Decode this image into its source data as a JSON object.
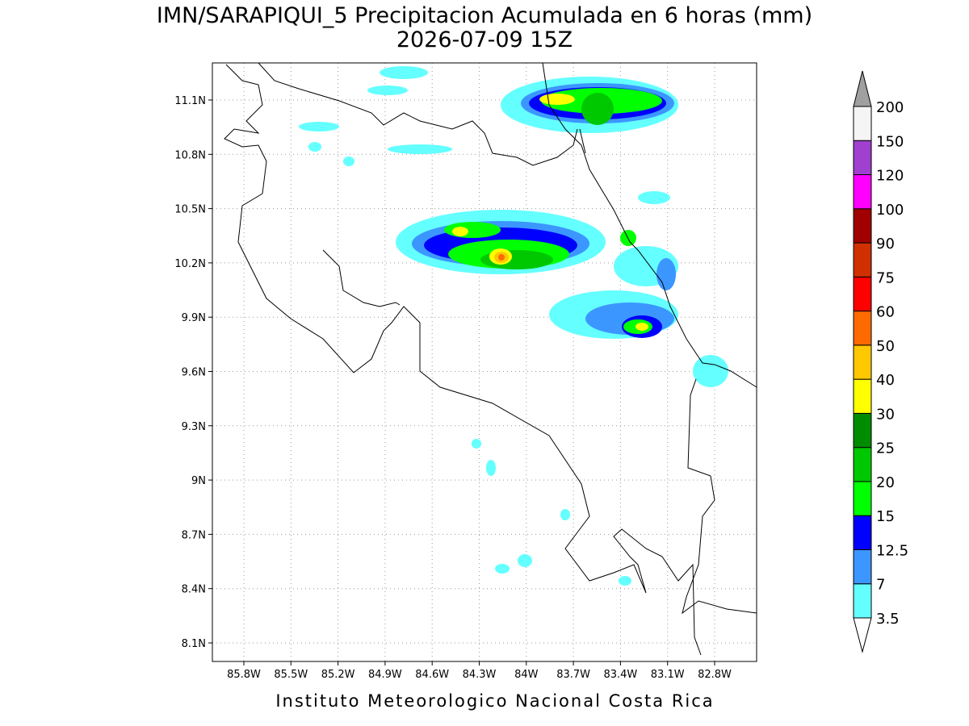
{
  "map": {
    "title": [
      "IMN/SARAPIQUI_5 Precipitacion Acumulada en 6 horas (mm)",
      "2026-07-09 15Z"
    ],
    "lat_ticks": [
      "11.1N",
      "10.8N",
      "10.5N",
      "10.2N",
      "9.9N",
      "9.6N",
      "9.3N",
      "9N",
      "8.7N",
      "8.4N",
      "8.1N"
    ],
    "lon_ticks": [
      "85.8W",
      "85.5W",
      "85.2W",
      "84.9W",
      "84.6W",
      "84.3W",
      "84W",
      "83.7W",
      "83.4W",
      "83.1W",
      "82.8W"
    ],
    "colorbar": {
      "levels": [
        3.5,
        7,
        12.5,
        15,
        20,
        25,
        30,
        40,
        50,
        60,
        75,
        90,
        100,
        120,
        150,
        200
      ],
      "colors": [
        "#64ffff",
        "#3c96ff",
        "#0000ff",
        "#00ff00",
        "#00c800",
        "#008c00",
        "#ffff00",
        "#ffc800",
        "#ff6a00",
        "#ff0000",
        "#d03000",
        "#a00000",
        "#ff00ff",
        "#a040d0",
        "#f5f5f5",
        "#a0a0a0"
      ],
      "under_color": "#ffffff"
    },
    "footer": "Instituto Meteorologico Nacional Costa Rica"
  }
}
